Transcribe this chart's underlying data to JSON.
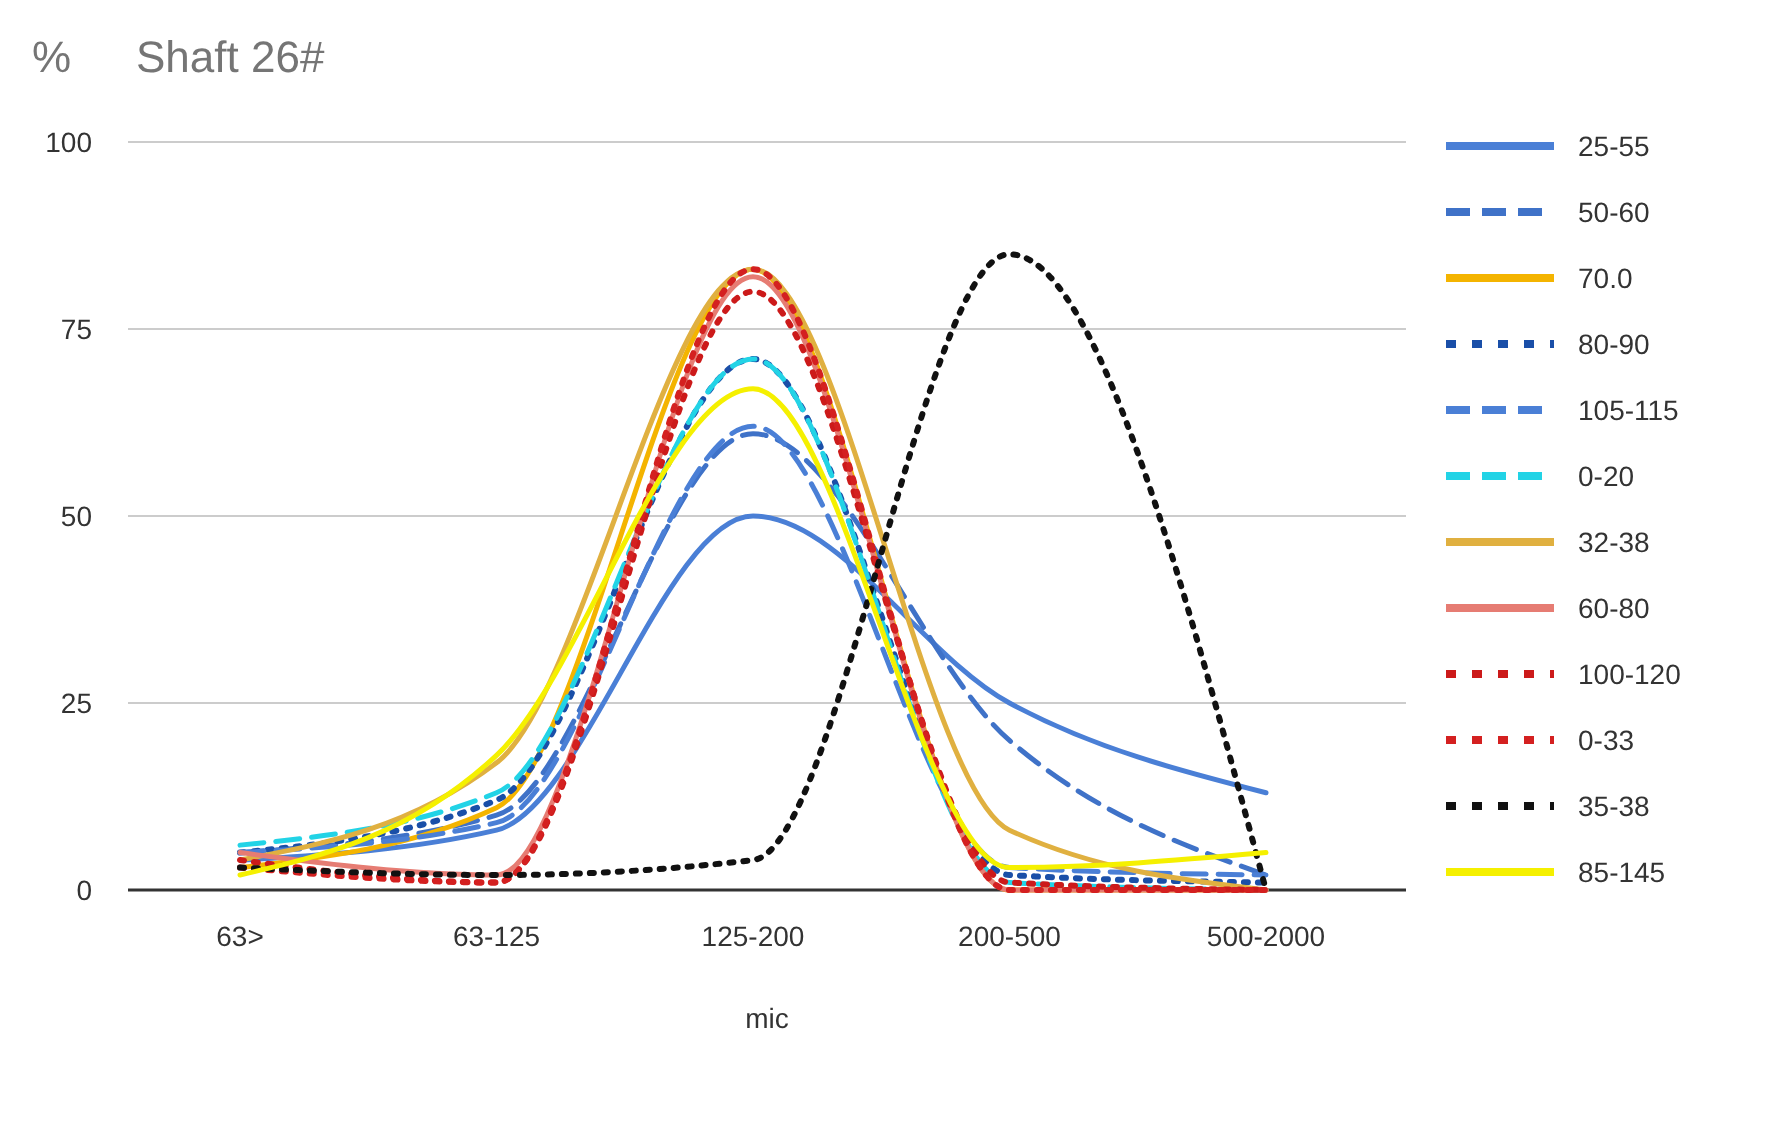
{
  "chart_data": {
    "type": "line",
    "title": "Shaft 26#",
    "ylabel": "%",
    "xlabel": "mic",
    "categories": [
      "63>",
      "63-125",
      "125-200",
      "200-500",
      "500-2000"
    ],
    "ylim": [
      0,
      100
    ],
    "yticks": [
      0,
      25,
      50,
      75,
      100
    ],
    "grid": "y",
    "legend": "right",
    "marker": "none",
    "series": [
      {
        "name": "25-55",
        "color": "#4a7fd6",
        "line_style": "solid",
        "values": [
          4,
          8,
          50,
          25,
          13
        ]
      },
      {
        "name": "50-60",
        "color": "#3f72c8",
        "line_style": "dashed",
        "values": [
          5,
          10,
          61,
          20,
          2
        ]
      },
      {
        "name": "70.0",
        "color": "#f4b400",
        "line_style": "solid",
        "values": [
          3,
          11,
          83,
          0,
          0
        ]
      },
      {
        "name": "80-90",
        "color": "#1a4fa8",
        "line_style": "dotted",
        "values": [
          5,
          12,
          71,
          2,
          1
        ]
      },
      {
        "name": "105-115",
        "color": "#4a7fd6",
        "line_style": "dashed",
        "values": [
          5,
          9,
          62,
          3,
          2
        ]
      },
      {
        "name": "0-20",
        "color": "#22d3e6",
        "line_style": "dashed",
        "values": [
          6,
          13,
          71,
          1,
          0
        ]
      },
      {
        "name": "32-38",
        "color": "#e0b040",
        "line_style": "solid",
        "values": [
          4,
          17,
          83,
          8,
          0
        ]
      },
      {
        "name": "60-80",
        "color": "#e67c73",
        "line_style": "solid",
        "values": [
          5,
          2,
          82,
          0,
          0
        ]
      },
      {
        "name": "100-120",
        "color": "#cc1a1a",
        "line_style": "dotted",
        "values": [
          4,
          1,
          80,
          1,
          0
        ]
      },
      {
        "name": "0-33",
        "color": "#d42020",
        "line_style": "dotted",
        "values": [
          3,
          1,
          83,
          0,
          0
        ]
      },
      {
        "name": "35-38",
        "color": "#111111",
        "line_style": "dotted",
        "values": [
          3,
          2,
          4,
          85,
          0
        ]
      },
      {
        "name": "85-145",
        "color": "#f5f000",
        "line_style": "solid",
        "values": [
          2,
          18,
          67,
          3,
          5
        ]
      }
    ]
  }
}
